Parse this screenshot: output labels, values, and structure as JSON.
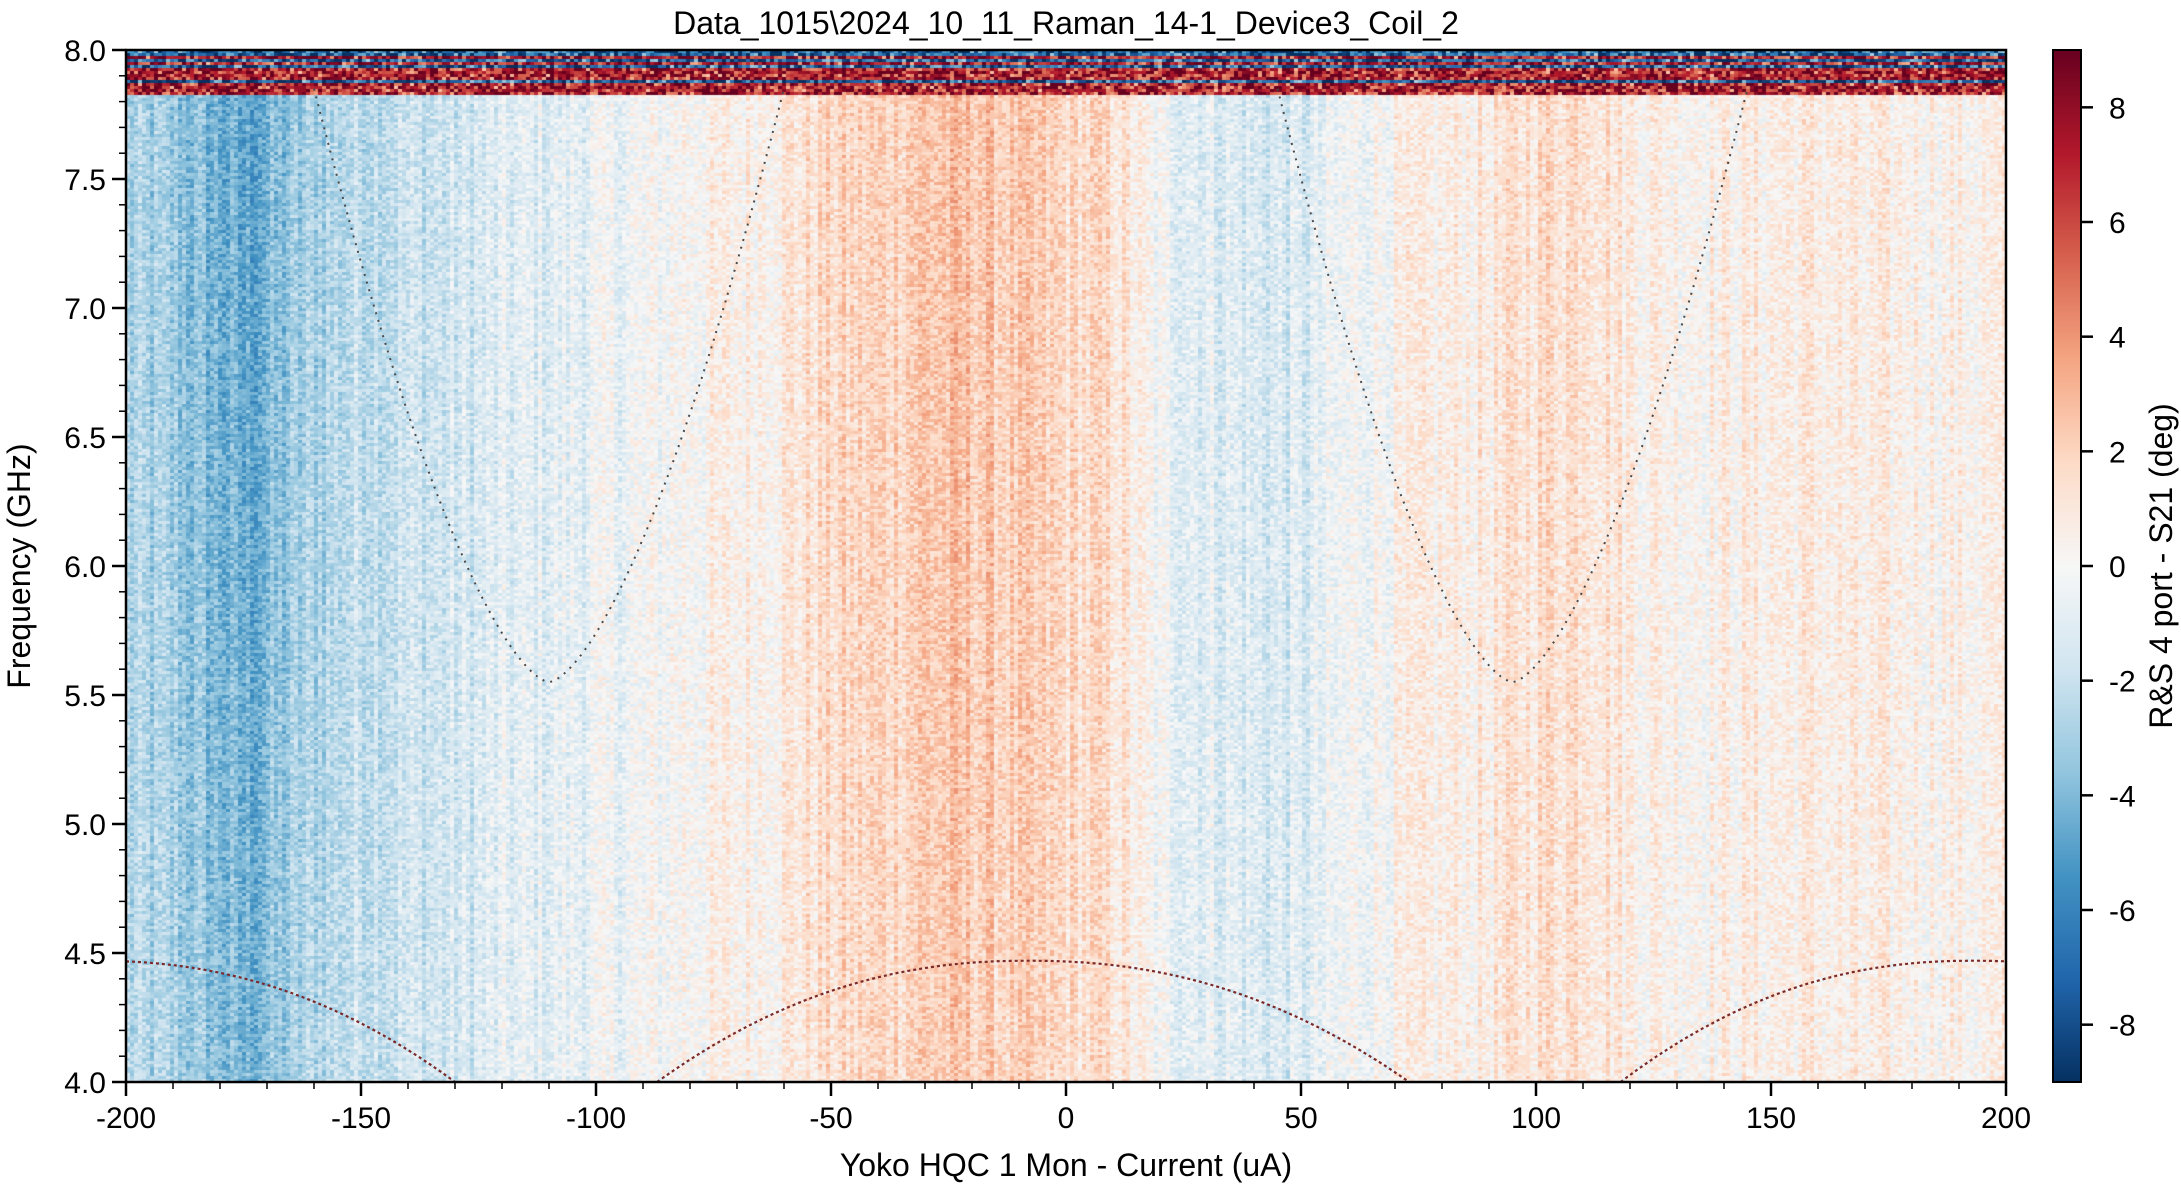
{
  "window": {
    "title": "Data_1015\\2024_10_11_Raman_14-1_Device3_Coil_2"
  },
  "chart_data": {
    "type": "heatmap",
    "title": "Data_1015\\2024_10_11_Raman_14-1_Device3_Coil_2",
    "xlabel": "Yoko HQC 1 Mon - Current (uA)",
    "ylabel": "Frequency (GHz)",
    "colorbar_label": "R&S 4 port - S21 (deg)",
    "xlim": [
      -200,
      200
    ],
    "ylim": [
      4.0,
      8.0
    ],
    "clim": [
      -9,
      9
    ],
    "colormap": "RdBu_r",
    "x_ticks": [
      -200,
      -150,
      -100,
      -50,
      0,
      50,
      100,
      150,
      200
    ],
    "x_tick_labels": [
      "-200",
      "-150",
      "-100",
      "-50",
      "0",
      "50",
      "100",
      "150",
      "200"
    ],
    "y_ticks": [
      4.0,
      4.5,
      5.0,
      5.5,
      6.0,
      6.5,
      7.0,
      7.5,
      8.0
    ],
    "y_tick_labels": [
      "4.0",
      "4.5",
      "5.0",
      "5.5",
      "6.0",
      "6.5",
      "7.0",
      "7.5",
      "8.0"
    ],
    "colorbar_ticks": [
      -8,
      -6,
      -4,
      -2,
      0,
      2,
      4,
      6,
      8
    ],
    "colorbar_tick_labels": [
      "-8",
      "-6",
      "-4",
      "-2",
      "0",
      "2",
      "4",
      "6",
      "8"
    ],
    "column_profile": {
      "x": [
        -200,
        -190,
        -180,
        -175,
        -170,
        -160,
        -150,
        -140,
        -130,
        -120,
        -110,
        -100,
        -90,
        -80,
        -70,
        -60,
        -50,
        -40,
        -30,
        -20,
        -10,
        0,
        10,
        20,
        30,
        40,
        50,
        60,
        70,
        80,
        90,
        100,
        110,
        120,
        130,
        140,
        150,
        160,
        170,
        180,
        190,
        200
      ],
      "value": [
        -3.0,
        -3.5,
        -4.5,
        -5.0,
        -4.3,
        -3.0,
        -2.2,
        -2.0,
        -1.8,
        -1.2,
        -1.0,
        -0.6,
        -0.3,
        0.3,
        0.5,
        1.0,
        1.8,
        2.0,
        2.6,
        2.6,
        2.2,
        1.8,
        1.5,
        -0.5,
        -1.0,
        -1.4,
        -1.5,
        -0.3,
        0.3,
        0.6,
        0.9,
        1.6,
        1.8,
        0.8,
        0.5,
        0.6,
        0.7,
        0.8,
        0.5,
        0.6,
        0.5,
        0.5
      ]
    },
    "noise_band": {
      "y_from": 7.83,
      "y_to": 8.0,
      "amplitude": 9
    },
    "features": [
      {
        "name": "upper-resonance",
        "vertex_x": [
          -110,
          95
        ],
        "vertex_y": 5.55,
        "top_y": 7.85,
        "half_width_at_top": 50
      },
      {
        "name": "lower-resonance",
        "peak_x": [
          -207,
          -8,
          193
        ],
        "peak_y": 4.47,
        "zero_x": [
          -87,
          -130,
          73,
          118
        ],
        "bottom_y": 4.0
      }
    ]
  }
}
